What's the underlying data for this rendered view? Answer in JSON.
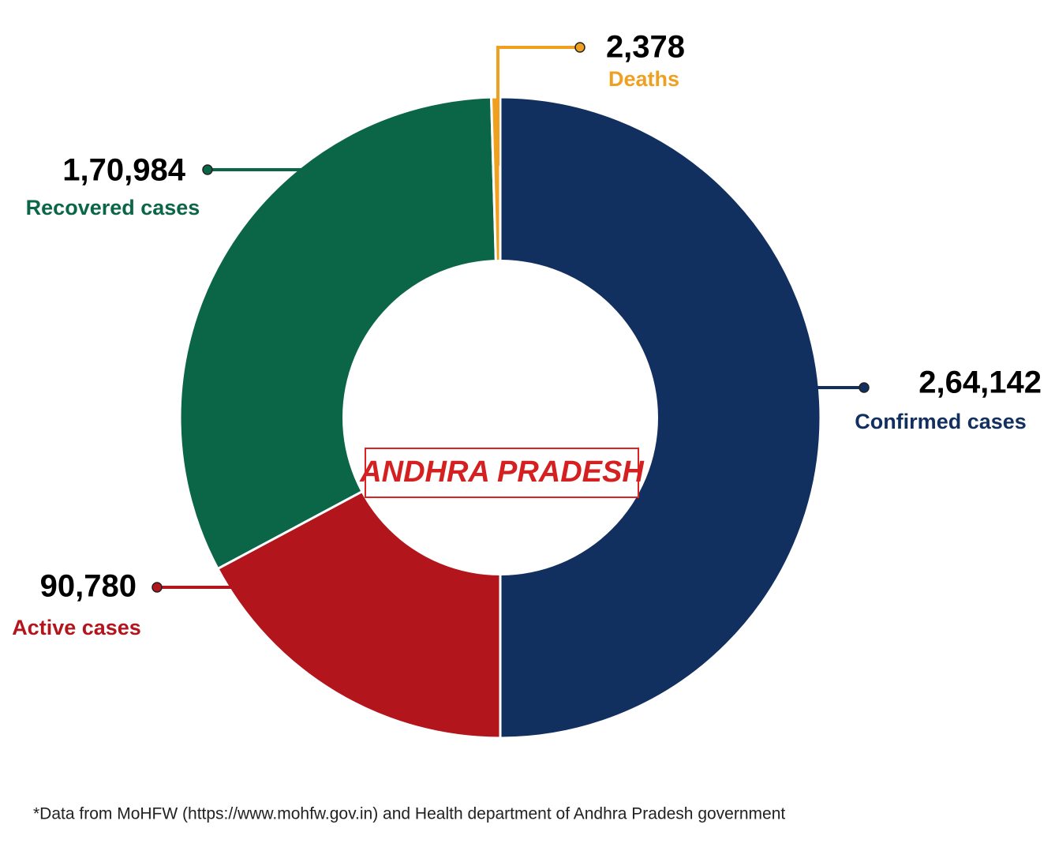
{
  "chart_data": {
    "type": "donut",
    "categories": [
      "Confirmed cases",
      "Active cases",
      "Recovered cases",
      "Deaths"
    ],
    "values": [
      264142,
      90780,
      170984,
      2378
    ],
    "value_labels": [
      "2,64,142",
      "90,780",
      "1,70,984",
      "2,378"
    ],
    "colors": [
      "#12305f",
      "#b3151c",
      "#0b6648",
      "#f0a020"
    ],
    "center_label": "ANDHRA PRADESH",
    "footnote": "*Data from MoHFW (https://www.mohfw.gov.in) and Health department of Andhra Pradesh government"
  }
}
